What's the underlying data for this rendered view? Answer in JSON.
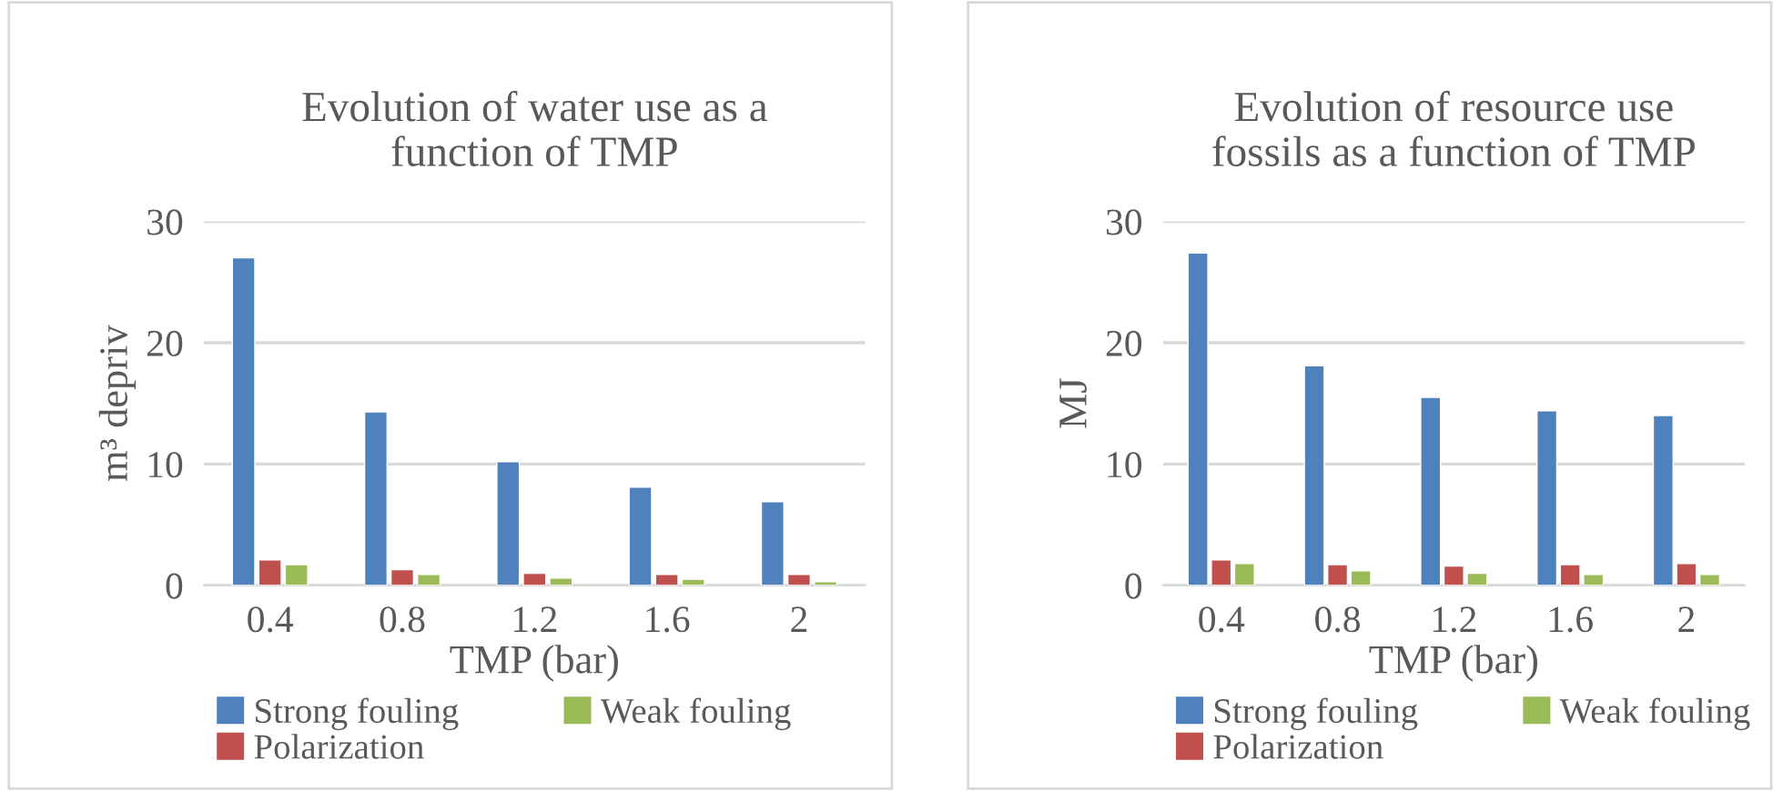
{
  "chart_data": [
    {
      "type": "bar",
      "title": "Evolution of water use as a\nfunction of TMP",
      "xlabel": "TMP (bar)",
      "ylabel": "m³ depriv",
      "categories": [
        "0.4",
        "0.8",
        "1.2",
        "1.6",
        "2"
      ],
      "ylim": [
        0,
        30
      ],
      "yticks": [
        0,
        10,
        20,
        30
      ],
      "grid": "y",
      "legend": "bottom",
      "series": [
        {
          "name": "Strong fouling",
          "color": "#4f81bd",
          "values": [
            27.0,
            14.3,
            10.2,
            8.1,
            6.9
          ]
        },
        {
          "name": "Polarization",
          "color": "#c0504d",
          "values": [
            2.1,
            1.3,
            1.0,
            0.9,
            0.9
          ]
        },
        {
          "name": "Weak fouling",
          "color": "#9bbb59",
          "values": [
            1.7,
            0.9,
            0.6,
            0.5,
            0.3
          ]
        }
      ]
    },
    {
      "type": "bar",
      "title": "Evolution of resource use\nfossils as a function of TMP",
      "xlabel": "TMP (bar)",
      "ylabel": "MJ",
      "categories": [
        "0.4",
        "0.8",
        "1.2",
        "1.6",
        "2"
      ],
      "ylim": [
        0,
        30
      ],
      "yticks": [
        0,
        10,
        20,
        30
      ],
      "grid": "y",
      "legend": "bottom",
      "series": [
        {
          "name": "Strong fouling",
          "color": "#4f81bd",
          "values": [
            27.4,
            18.1,
            15.5,
            14.4,
            14.0
          ]
        },
        {
          "name": "Polarization",
          "color": "#c0504d",
          "values": [
            2.1,
            1.7,
            1.6,
            1.7,
            1.8
          ]
        },
        {
          "name": "Weak fouling",
          "color": "#9bbb59",
          "values": [
            1.8,
            1.2,
            1.0,
            0.9,
            0.9
          ]
        }
      ]
    }
  ]
}
